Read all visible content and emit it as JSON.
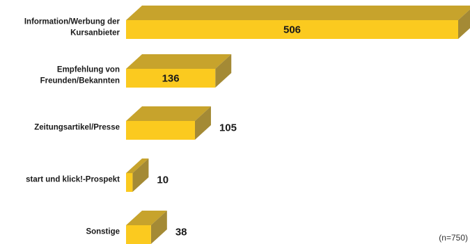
{
  "chart_data": {
    "type": "bar",
    "orientation": "horizontal",
    "style": "3d",
    "categories": [
      [
        "Information/Werbung der",
        "Kursanbieter"
      ],
      [
        "Empfehlung von",
        "Freunden/Bekannten"
      ],
      [
        "Zeitungsartikel/Presse"
      ],
      [
        "start und klick!-Prospekt"
      ],
      [
        "Sonstige"
      ]
    ],
    "values": [
      506,
      136,
      105,
      10,
      38
    ],
    "data_labels": [
      "506",
      "136",
      "105",
      "10",
      "38"
    ],
    "note": "(n=750)",
    "title": "",
    "xlabel": "",
    "ylabel": "",
    "xlim": [
      0,
      506
    ],
    "grid": false,
    "legend": "none",
    "colors": {
      "front": "#FBCA1F",
      "top": "#C7A32C",
      "side": "#A48A35"
    }
  }
}
